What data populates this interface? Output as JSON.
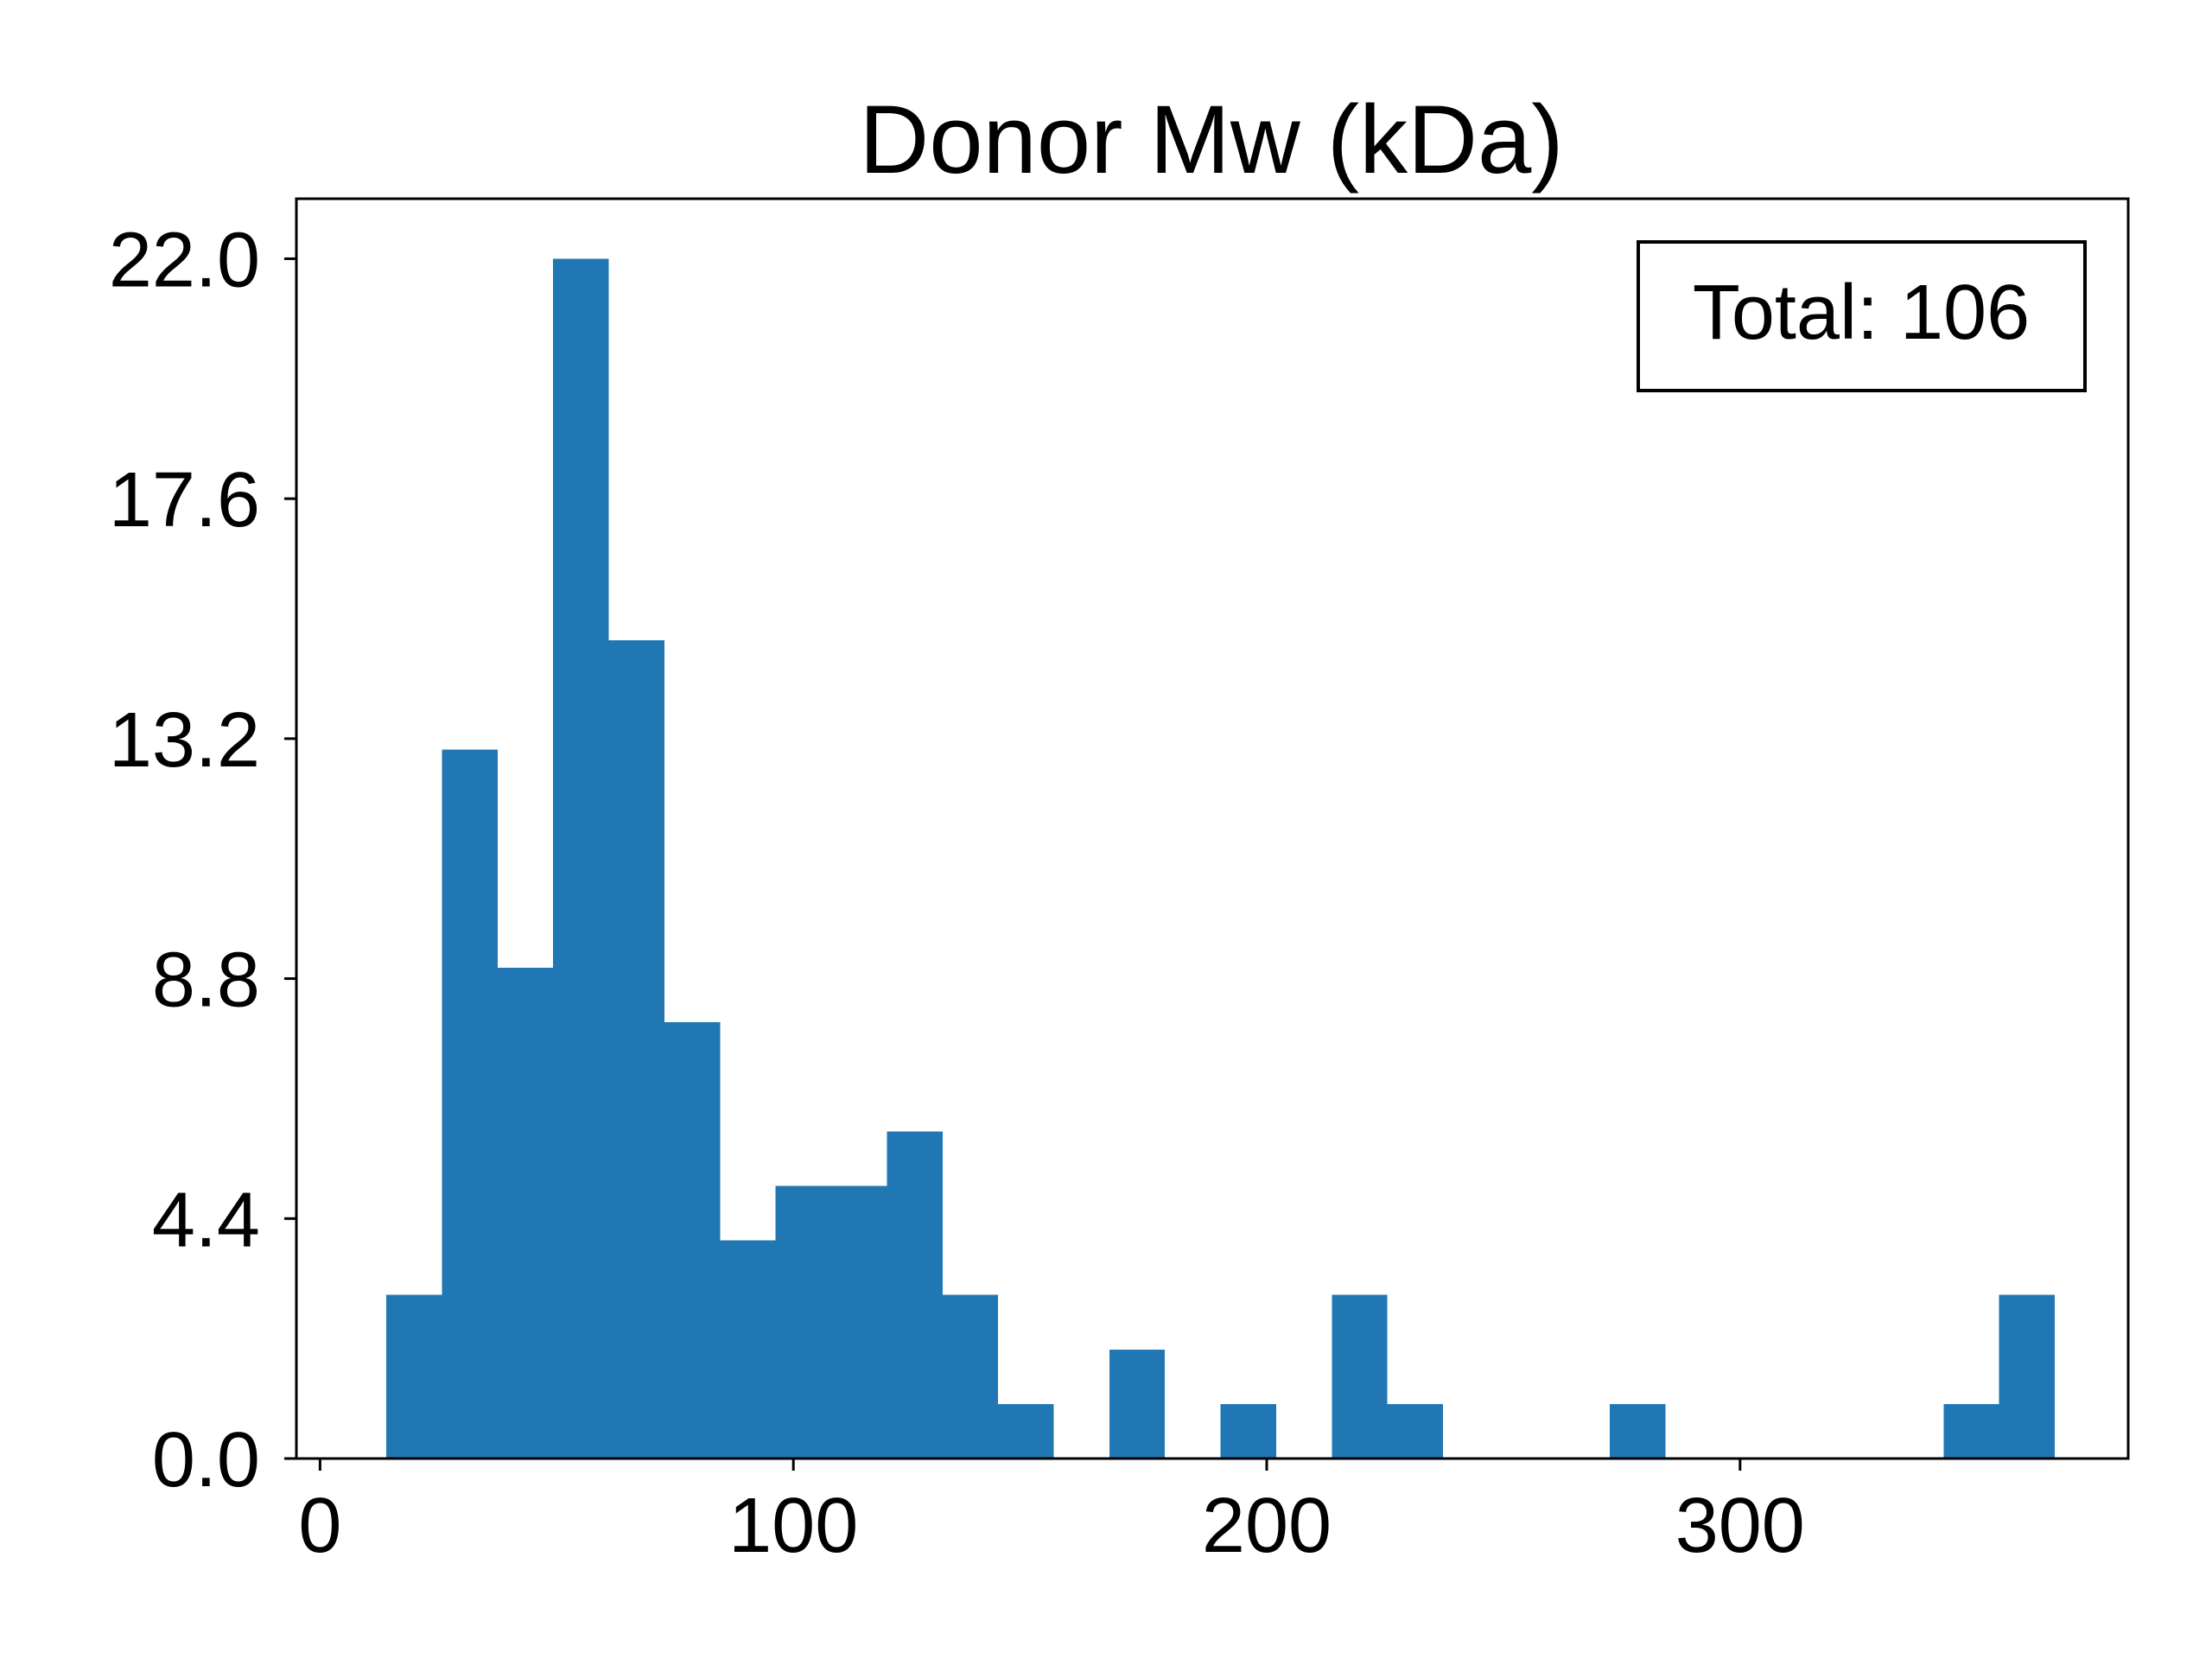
{
  "chart_data": {
    "type": "bar",
    "title": "Donor Mw (kDa)",
    "xlabel": "",
    "ylabel": "",
    "xlim": [
      -5,
      382
    ],
    "ylim": [
      0,
      23.1
    ],
    "x_ticks": [
      0,
      100,
      200,
      300
    ],
    "x_tick_labels": [
      "0",
      "100",
      "200",
      "300"
    ],
    "y_ticks": [
      0.0,
      4.4,
      8.8,
      13.2,
      17.6,
      22.0
    ],
    "y_tick_labels": [
      "0.0",
      "4.4",
      "8.8",
      "13.2",
      "17.6",
      "22.0"
    ],
    "bin_edges": [
      14.0,
      25.75,
      37.5,
      49.25,
      61.0,
      72.75,
      84.5,
      96.25,
      108.0,
      119.75,
      131.5,
      143.25,
      155.0,
      166.75,
      178.5,
      190.25,
      202.0,
      213.75,
      225.5,
      237.25,
      249.0,
      260.75,
      272.5,
      284.25,
      296.0,
      307.75,
      319.5,
      331.25,
      343.0,
      354.75,
      366.5
    ],
    "values": [
      3,
      13,
      9,
      22,
      15,
      8,
      4,
      5,
      5,
      6,
      3,
      1,
      0,
      2,
      0,
      1,
      0,
      3,
      1,
      0,
      0,
      0,
      1,
      0,
      0,
      0,
      0,
      0,
      1,
      3
    ],
    "color": "#2077b4",
    "grid": false,
    "annotation": "Total: 106",
    "annotation_position": "top-right"
  }
}
